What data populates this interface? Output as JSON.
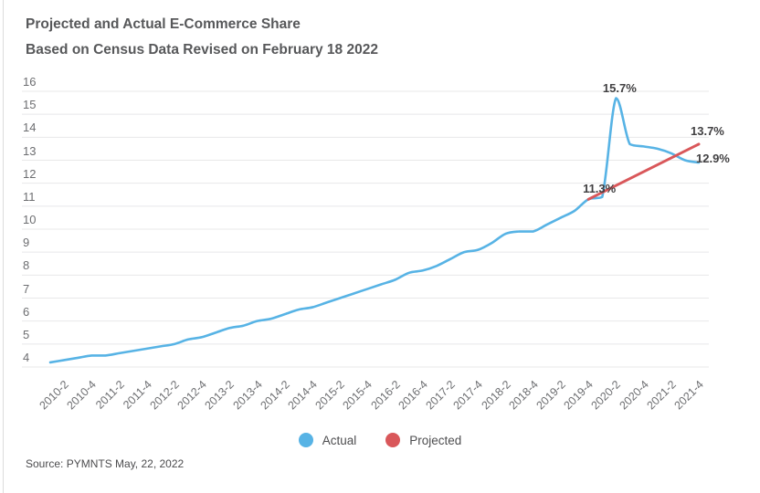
{
  "chart_data": {
    "type": "line",
    "title": "Projected and Actual E-Commerce Share",
    "subtitle": "Based on Census Data Revised on February 18 2022",
    "xlabel": "",
    "ylabel": "",
    "ylim": [
      4,
      16
    ],
    "grid": "horizontal",
    "legend_position": "bottom-center",
    "y_ticks": [
      16,
      15,
      14,
      13,
      12,
      11,
      10,
      9,
      8,
      7,
      6,
      5,
      4
    ],
    "x_tick_labels": [
      "2010-2",
      "2010-4",
      "2011-2",
      "2011-4",
      "2012-2",
      "2012-4",
      "2013-2",
      "2013-4",
      "2014-2",
      "2014-4",
      "2015-2",
      "2015-4",
      "2016-2",
      "2016-4",
      "2017-2",
      "2017-4",
      "2018-2",
      "2018-4",
      "2019-2",
      "2019-4",
      "2020-2",
      "2020-4",
      "2021-2",
      "2021-4"
    ],
    "categories": [
      "2010-1",
      "2010-2",
      "2010-3",
      "2010-4",
      "2011-1",
      "2011-2",
      "2011-3",
      "2011-4",
      "2012-1",
      "2012-2",
      "2012-3",
      "2012-4",
      "2013-1",
      "2013-2",
      "2013-3",
      "2013-4",
      "2014-1",
      "2014-2",
      "2014-3",
      "2014-4",
      "2015-1",
      "2015-2",
      "2015-3",
      "2015-4",
      "2016-1",
      "2016-2",
      "2016-3",
      "2016-4",
      "2017-1",
      "2017-2",
      "2017-3",
      "2017-4",
      "2018-1",
      "2018-2",
      "2018-3",
      "2018-4",
      "2019-1",
      "2019-2",
      "2019-3",
      "2019-4",
      "2020-1",
      "2020-2",
      "2020-3",
      "2020-4",
      "2021-1",
      "2021-2",
      "2021-3",
      "2021-4"
    ],
    "series": [
      {
        "name": "Actual",
        "color": "#57b3e5",
        "style": "smooth",
        "values": [
          4.2,
          4.3,
          4.4,
          4.5,
          4.5,
          4.6,
          4.7,
          4.8,
          4.9,
          5.0,
          5.2,
          5.3,
          5.5,
          5.7,
          5.8,
          6.0,
          6.1,
          6.3,
          6.5,
          6.6,
          6.8,
          7.0,
          7.2,
          7.4,
          7.6,
          7.8,
          8.1,
          8.2,
          8.4,
          8.7,
          9.0,
          9.1,
          9.4,
          9.8,
          9.9,
          9.9,
          10.2,
          10.5,
          10.8,
          11.3,
          11.4,
          15.7,
          13.7,
          13.6,
          13.5,
          13.3,
          13.0,
          12.9
        ]
      },
      {
        "name": "Projected",
        "color": "#d9575a",
        "style": "straight",
        "x": [
          "2019-4",
          "2021-4"
        ],
        "values": [
          11.3,
          13.7
        ]
      }
    ],
    "annotations": [
      {
        "text": "15.7%",
        "x": "2020-2",
        "y": 15.7,
        "placement": "above",
        "dx": 4
      },
      {
        "text": "11.3%",
        "x": "2019-4",
        "y": 11.3,
        "placement": "above",
        "dx": 12
      },
      {
        "text": "13.7%",
        "x": "2021-4",
        "y": 13.7,
        "placement": "above-right",
        "dx": 0
      },
      {
        "text": "12.9%",
        "x": "2021-4",
        "y": 12.9,
        "placement": "right",
        "dx": 0
      }
    ]
  },
  "source": "Source: PYMNTS May, 22, 2022"
}
